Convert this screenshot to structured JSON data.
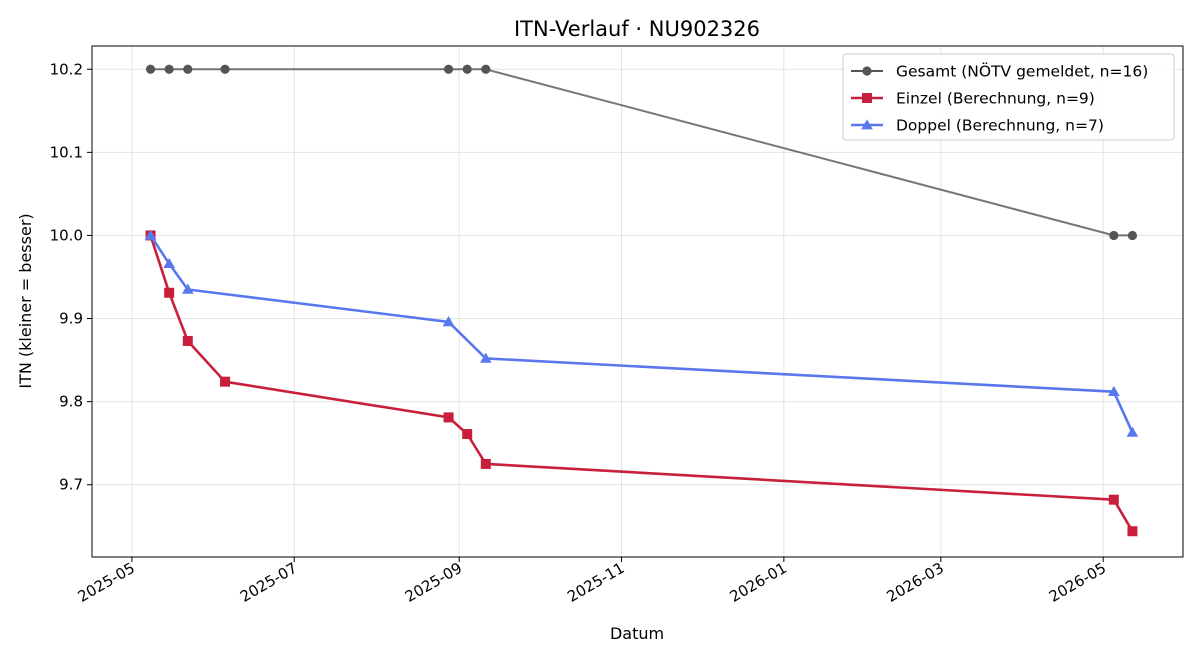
{
  "chart_data": {
    "type": "line",
    "title": "ITN-Verlauf · NU902326",
    "xlabel": "Datum",
    "ylabel": "ITN  (kleiner = besser)",
    "xlim": [
      "2025-04-16",
      "2026-05-31"
    ],
    "ylim": [
      9.613,
      10.228
    ],
    "x_ticks": [
      "2025-05",
      "2025-07",
      "2025-09",
      "2025-11",
      "2026-01",
      "2026-03",
      "2026-05"
    ],
    "y_ticks": [
      "9.7",
      "9.8",
      "9.9",
      "10.0",
      "10.1",
      "10.2"
    ],
    "grid": true,
    "legend_position": "top-right",
    "series": [
      {
        "name": "Gesamt (NÖTV gemeldet, n=16)",
        "color": "#555555",
        "marker": "circle",
        "points": [
          {
            "x": "2025-05-08",
            "y": 10.2
          },
          {
            "x": "2025-05-15",
            "y": 10.2
          },
          {
            "x": "2025-05-22",
            "y": 10.2
          },
          {
            "x": "2025-06-05",
            "y": 10.2
          },
          {
            "x": "2025-08-28",
            "y": 10.2
          },
          {
            "x": "2025-09-04",
            "y": 10.2
          },
          {
            "x": "2025-09-11",
            "y": 10.2
          },
          {
            "x": "2026-05-05",
            "y": 10.0
          },
          {
            "x": "2026-05-12",
            "y": 10.0
          }
        ]
      },
      {
        "name": "Einzel (Berechnung, n=9)",
        "color": "#c8203c",
        "marker": "square",
        "points": [
          {
            "x": "2025-05-08",
            "y": 10.0
          },
          {
            "x": "2025-05-15",
            "y": 9.931
          },
          {
            "x": "2025-05-22",
            "y": 9.873
          },
          {
            "x": "2025-06-05",
            "y": 9.824
          },
          {
            "x": "2025-08-28",
            "y": 9.781
          },
          {
            "x": "2025-09-04",
            "y": 9.761
          },
          {
            "x": "2025-09-11",
            "y": 9.725
          },
          {
            "x": "2026-05-05",
            "y": 9.682
          },
          {
            "x": "2026-05-12",
            "y": 9.644
          }
        ]
      },
      {
        "name": "Doppel (Berechnung, n=7)",
        "color": "#5a78ee",
        "marker": "triangle",
        "points": [
          {
            "x": "2025-05-08",
            "y": 10.0
          },
          {
            "x": "2025-05-15",
            "y": 9.966
          },
          {
            "x": "2025-05-22",
            "y": 9.935
          },
          {
            "x": "2025-08-28",
            "y": 9.896
          },
          {
            "x": "2025-09-11",
            "y": 9.852
          },
          {
            "x": "2026-05-05",
            "y": 9.812
          },
          {
            "x": "2026-05-12",
            "y": 9.763
          }
        ]
      }
    ]
  }
}
